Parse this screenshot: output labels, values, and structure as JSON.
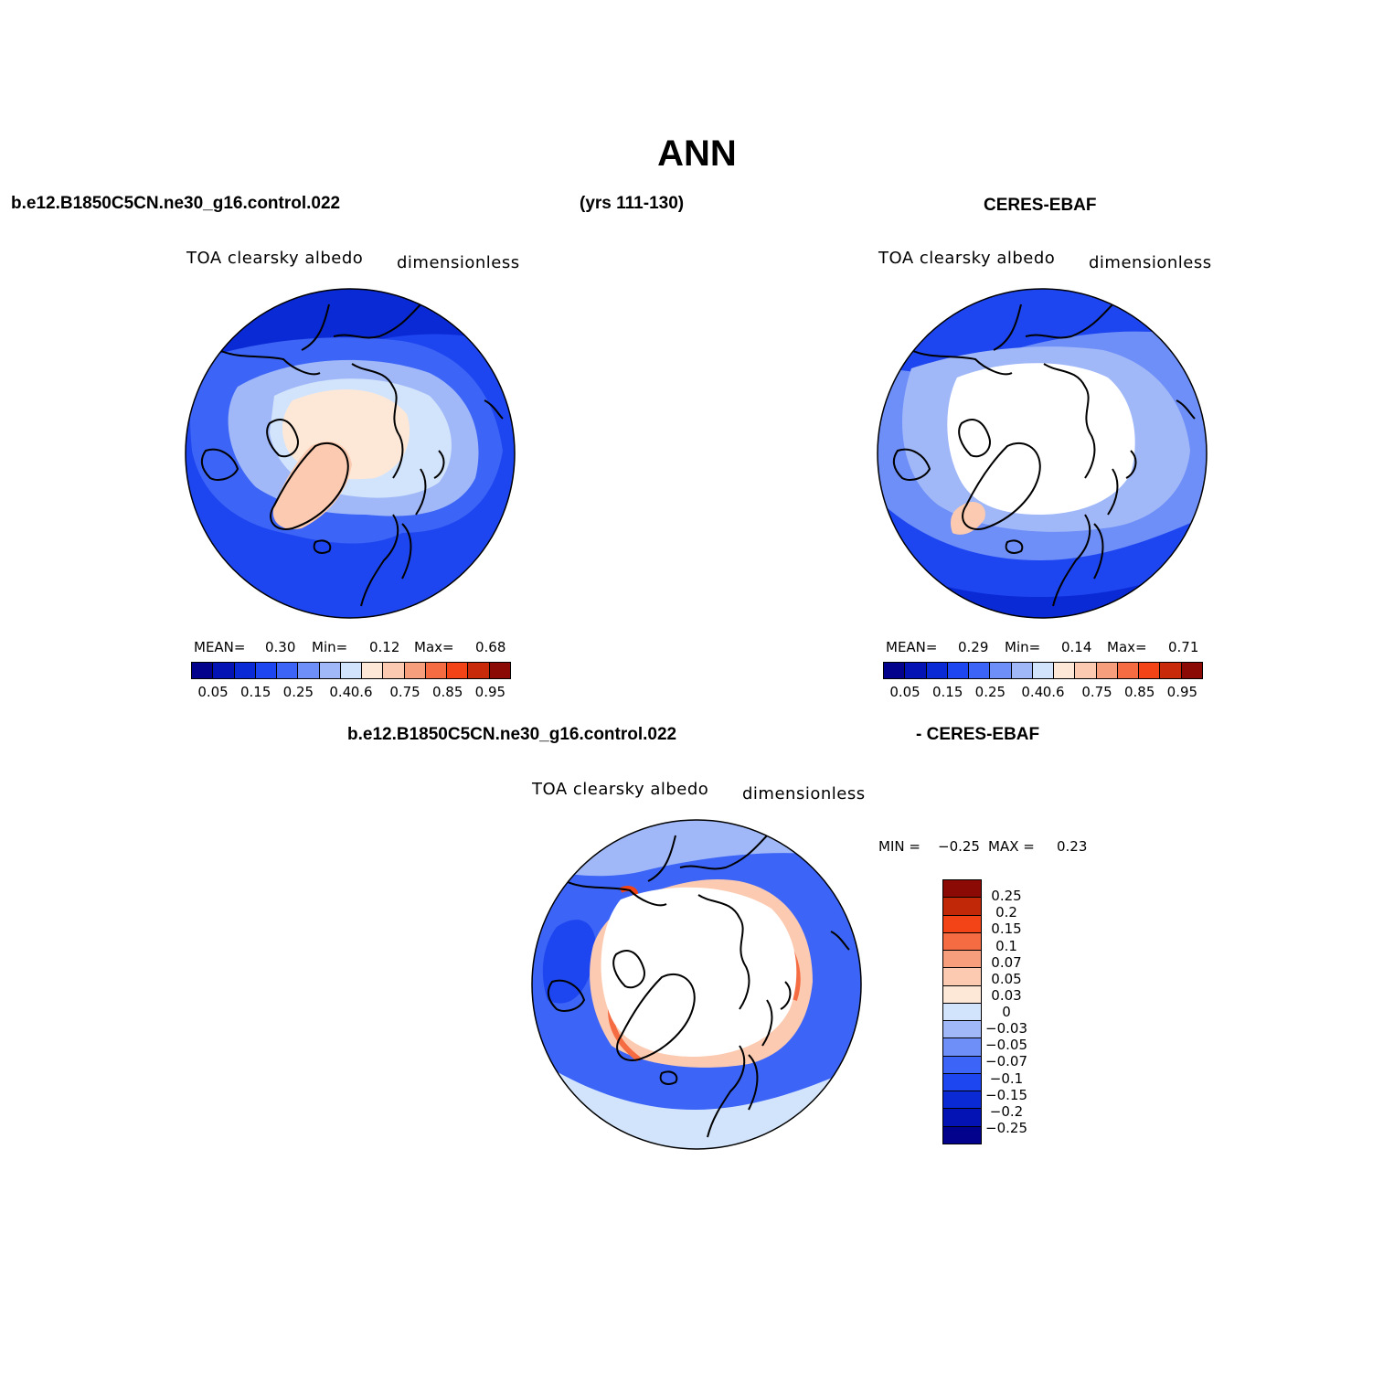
{
  "title": "ANN",
  "left_header": {
    "case": "b.e12.B1850C5CN.ne30_g16.control.022",
    "years": "(yrs 111-130)"
  },
  "right_header": "CERES-EBAF",
  "diff_header": {
    "case": "b.e12.B1850C5CN.ne30_g16.control.022",
    "ref": "- CERES-EBAF"
  },
  "panels": [
    {
      "id": "model",
      "variable": "TOA clearsky albedo",
      "units": "dimensionless",
      "mean_label": "MEAN=",
      "mean": "0.30",
      "min_label": "Min=",
      "min": "0.12",
      "max_label": "Max=",
      "max": "0.68"
    },
    {
      "id": "obs",
      "variable": "TOA clearsky albedo",
      "units": "dimensionless",
      "mean_label": "MEAN=",
      "mean": "0.29",
      "min_label": "Min=",
      "min": "0.14",
      "max_label": "Max=",
      "max": "0.71"
    },
    {
      "id": "diff",
      "variable": "TOA clearsky albedo",
      "units": "dimensionless",
      "min_label": "MIN =",
      "min": "−0.25",
      "max_label": "MAX =",
      "max": "0.23"
    }
  ],
  "colorbar_main": {
    "colors": [
      "#02028c",
      "#0414b4",
      "#0a2ad6",
      "#1e46f0",
      "#3c64f6",
      "#6e8ef8",
      "#a0b8f8",
      "#d2e4fc",
      "#fde8d8",
      "#fbcab0",
      "#f79e7c",
      "#f56c42",
      "#f24416",
      "#c82a0a",
      "#8c0a06"
    ],
    "labels": [
      "0.05",
      "0.15",
      "0.25",
      "0.4",
      "0.6",
      "0.75",
      "0.85",
      "0.95"
    ]
  },
  "colorbar_diff": {
    "colors": [
      "#8c0a06",
      "#c02808",
      "#f24416",
      "#f56c42",
      "#f79e7c",
      "#fbcab0",
      "#fde8d8",
      "#d2e4fc",
      "#a0b8f8",
      "#6e8ef8",
      "#3c64f6",
      "#1e46f0",
      "#0a2ad6",
      "#0414b4",
      "#02028c"
    ],
    "labels": [
      "0.25",
      "0.2",
      "0.15",
      "0.1",
      "0.07",
      "0.05",
      "0.03",
      "0",
      "−0.03",
      "−0.05",
      "−0.07",
      "−0.1",
      "−0.15",
      "−0.2",
      "−0.25"
    ]
  }
}
